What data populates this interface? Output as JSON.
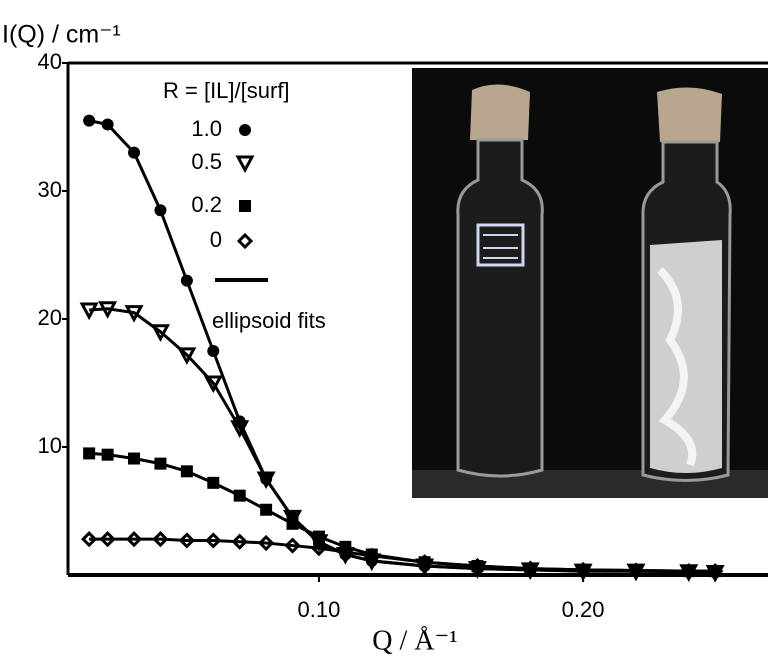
{
  "chart_data": {
    "type": "scatter",
    "y_label": "I(Q) / cm⁻¹",
    "x_label": "Q / Å⁻¹",
    "legend_title": "R = [IL]/[surf]",
    "fit_label": "ellipsoid fits",
    "x": [
      0.013,
      0.02,
      0.03,
      0.04,
      0.05,
      0.06,
      0.07,
      0.08,
      0.09,
      0.1,
      0.11,
      0.12,
      0.14,
      0.16,
      0.18,
      0.2,
      0.22,
      0.24,
      0.25
    ],
    "series": [
      {
        "name": "1.0",
        "marker": "circle",
        "color": "#000000",
        "values": [
          35.5,
          35.2,
          33,
          28.5,
          23,
          17.5,
          12,
          7.5,
          4.5,
          2.5,
          1.6,
          1.1,
          0.7,
          0.5,
          0.4,
          0.3,
          0.3,
          0.25,
          0.2
        ]
      },
      {
        "name": "0.5",
        "marker": "triangle-down",
        "color": "#000000",
        "values": [
          20.7,
          20.8,
          20.5,
          19,
          17.2,
          15,
          11.5,
          7.5,
          4.5,
          2.6,
          1.6,
          1.1,
          0.7,
          0.5,
          0.4,
          0.3,
          0.3,
          0.25,
          0.2
        ]
      },
      {
        "name": "0.2",
        "marker": "square",
        "color": "#000000",
        "values": [
          9.5,
          9.4,
          9.1,
          8.7,
          8.1,
          7.2,
          6.2,
          5.1,
          4.0,
          3.0,
          2.2,
          1.6,
          1.0,
          0.7,
          0.5,
          0.4,
          0.35,
          0.3,
          0.3
        ]
      },
      {
        "name": "0",
        "marker": "diamond-open",
        "color": "#000000",
        "values": [
          2.8,
          2.8,
          2.8,
          2.8,
          2.7,
          2.7,
          2.6,
          2.5,
          2.3,
          2.1,
          1.8,
          1.5,
          1.0,
          0.7,
          0.5,
          0.4,
          0.35,
          0.3,
          0.3
        ]
      }
    ],
    "xlim": [
      0.005,
      0.27
    ],
    "ylim": [
      0,
      40
    ],
    "xticks": [
      {
        "value": 0.1,
        "label": "0.10"
      },
      {
        "value": 0.2,
        "label": "0.20"
      }
    ],
    "yticks": [
      10,
      20,
      30,
      40
    ],
    "grid": false
  }
}
